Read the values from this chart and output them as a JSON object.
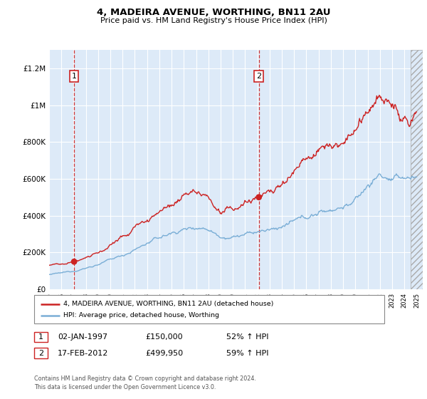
{
  "title": "4, MADEIRA AVENUE, WORTHING, BN11 2AU",
  "subtitle": "Price paid vs. HM Land Registry's House Price Index (HPI)",
  "ylabel_ticks": [
    "£0",
    "£200K",
    "£400K",
    "£600K",
    "£800K",
    "£1M",
    "£1.2M"
  ],
  "ytick_values": [
    0,
    200000,
    400000,
    600000,
    800000,
    1000000,
    1200000
  ],
  "ylim": [
    0,
    1300000
  ],
  "xlim_start": 1995.0,
  "xlim_end": 2025.5,
  "sale1_x": 1997.04,
  "sale1_y": 150000,
  "sale1_label": "1",
  "sale2_x": 2012.12,
  "sale2_y": 499950,
  "sale2_label": "2",
  "hpi_color": "#7aaed6",
  "price_color": "#cc2222",
  "dashed_color": "#cc2222",
  "background_color": "#ddeaf8",
  "annotation_box_color": "#cc2222",
  "legend_label_price": "4, MADEIRA AVENUE, WORTHING, BN11 2AU (detached house)",
  "legend_label_hpi": "HPI: Average price, detached house, Worthing",
  "table_rows": [
    {
      "num": "1",
      "date": "02-JAN-1997",
      "price": "£150,000",
      "hpi": "52% ↑ HPI"
    },
    {
      "num": "2",
      "date": "17-FEB-2012",
      "price": "£499,950",
      "hpi": "59% ↑ HPI"
    }
  ],
  "footnote": "Contains HM Land Registry data © Crown copyright and database right 2024.\nThis data is licensed under the Open Government Licence v3.0.",
  "hpi_knots": [
    1995,
    1996,
    1997,
    1998,
    1999,
    2000,
    2001,
    2002,
    2003,
    2004,
    2005,
    2006,
    2007,
    2008,
    2009,
    2010,
    2011,
    2012,
    2013,
    2014,
    2015,
    2016,
    2017,
    2018,
    2019,
    2020,
    2021,
    2022,
    2023,
    2024,
    2025
  ],
  "hpi_vals": [
    80000,
    88000,
    100000,
    115000,
    135000,
    160000,
    185000,
    215000,
    250000,
    280000,
    305000,
    325000,
    340000,
    330000,
    290000,
    285000,
    295000,
    310000,
    320000,
    340000,
    365000,
    390000,
    415000,
    435000,
    450000,
    480000,
    560000,
    625000,
    590000,
    605000,
    610000
  ],
  "price_knots": [
    1995,
    1996,
    1997,
    1998,
    1999,
    2000,
    2001,
    2002,
    2003,
    2004,
    2005,
    2006,
    2007,
    2008,
    2009,
    2010,
    2011,
    2012,
    2013,
    2014,
    2015,
    2016,
    2017,
    2018,
    2019,
    2020,
    2021,
    2022,
    2023,
    2024,
    2025
  ],
  "price_vals": [
    130000,
    140000,
    150000,
    170000,
    200000,
    240000,
    285000,
    330000,
    385000,
    415000,
    450000,
    490000,
    525000,
    510000,
    415000,
    430000,
    480000,
    500000,
    530000,
    580000,
    650000,
    720000,
    770000,
    800000,
    820000,
    860000,
    970000,
    1020000,
    960000,
    940000,
    950000
  ]
}
